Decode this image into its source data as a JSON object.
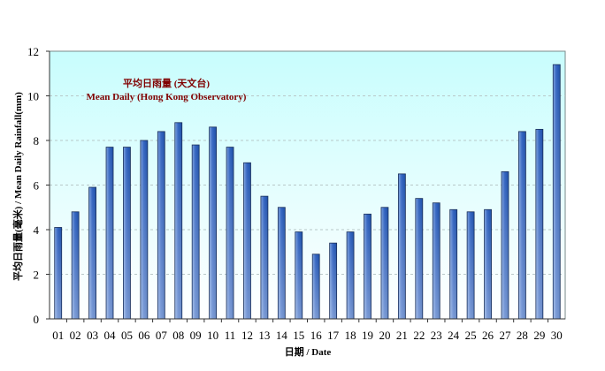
{
  "chart_data": {
    "type": "bar",
    "title": "",
    "annotation": {
      "line1": "平均日雨量 (天文台)",
      "line2": "Mean Daily (Hong Kong Observatory)",
      "color": "#800000"
    },
    "xlabel": "日期 / Date",
    "ylabel": "平均日雨量(毫米) / Mean Daily Rainfall(mm)",
    "ylim": [
      0,
      12
    ],
    "yticks": [
      0,
      2,
      4,
      6,
      8,
      10,
      12
    ],
    "grid": true,
    "legend_position": "none",
    "categories": [
      "01",
      "02",
      "03",
      "04",
      "05",
      "06",
      "07",
      "08",
      "09",
      "10",
      "11",
      "12",
      "13",
      "14",
      "15",
      "16",
      "17",
      "18",
      "19",
      "20",
      "21",
      "22",
      "23",
      "24",
      "25",
      "26",
      "27",
      "28",
      "29",
      "30"
    ],
    "series": [
      {
        "name": "Mean Daily (Hong Kong Observatory)",
        "values": [
          4.1,
          4.8,
          5.9,
          7.7,
          7.7,
          8.0,
          8.4,
          8.8,
          7.8,
          8.6,
          7.7,
          7.0,
          5.5,
          5.0,
          3.9,
          2.9,
          3.4,
          3.9,
          4.7,
          5.0,
          6.5,
          5.4,
          5.2,
          4.9,
          4.8,
          4.9,
          6.6,
          8.4,
          8.5,
          11.4
        ],
        "color": "#2f5fb8"
      }
    ],
    "colors": {
      "plot_bg_top": "#c8fdfd",
      "plot_bg_bottom": "#ffffff",
      "bar_dark": "#1e4fa6",
      "bar_light": "#8db0e6",
      "bar_outline": "#1a2f5a",
      "grid": "#b8c8c8"
    }
  }
}
